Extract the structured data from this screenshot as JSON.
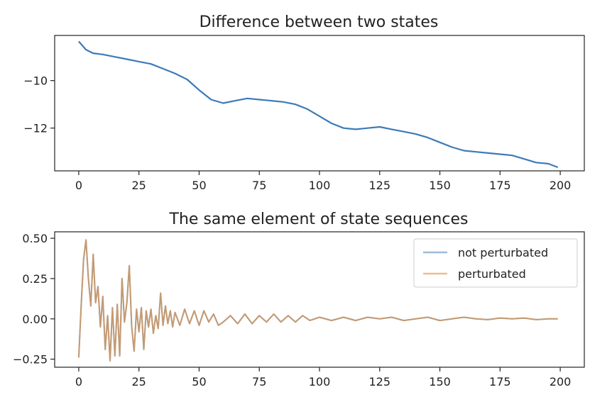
{
  "chart_data": [
    {
      "type": "line",
      "title": "Difference between two states",
      "xlabel": "",
      "ylabel": "",
      "xlim": [
        -10,
        210
      ],
      "ylim": [
        -13.8,
        -8.1
      ],
      "xticks": [
        0,
        25,
        50,
        75,
        100,
        125,
        150,
        175,
        200
      ],
      "xtick_labels": [
        "0",
        "25",
        "50",
        "75",
        "100",
        "125",
        "150",
        "175",
        "200"
      ],
      "yticks": [
        -10,
        -12
      ],
      "ytick_labels": [
        "−10",
        "−12"
      ],
      "grid": false,
      "series": [
        {
          "color": "#3d7ab8",
          "x": [
            0,
            3,
            6,
            10,
            15,
            20,
            25,
            30,
            35,
            40,
            45,
            50,
            55,
            60,
            65,
            70,
            75,
            80,
            85,
            90,
            95,
            100,
            105,
            110,
            115,
            120,
            125,
            130,
            135,
            140,
            145,
            150,
            155,
            160,
            165,
            170,
            175,
            180,
            185,
            190,
            195,
            199
          ],
          "y": [
            -8.35,
            -8.7,
            -8.85,
            -8.9,
            -9.0,
            -9.1,
            -9.2,
            -9.3,
            -9.5,
            -9.7,
            -9.95,
            -10.4,
            -10.8,
            -10.95,
            -10.85,
            -10.75,
            -10.8,
            -10.85,
            -10.9,
            -11.0,
            -11.2,
            -11.5,
            -11.8,
            -12.0,
            -12.05,
            -12.0,
            -11.95,
            -12.05,
            -12.15,
            -12.25,
            -12.4,
            -12.6,
            -12.8,
            -12.95,
            -13.0,
            -13.05,
            -13.1,
            -13.15,
            -13.3,
            -13.45,
            -13.5,
            -13.65
          ]
        }
      ]
    },
    {
      "type": "line",
      "title": "The same element of state sequences",
      "xlabel": "",
      "ylabel": "",
      "xlim": [
        -10,
        210
      ],
      "ylim": [
        -0.3,
        0.54
      ],
      "xticks": [
        0,
        25,
        50,
        75,
        100,
        125,
        150,
        175,
        200
      ],
      "xtick_labels": [
        "0",
        "25",
        "50",
        "75",
        "100",
        "125",
        "150",
        "175",
        "200"
      ],
      "yticks": [
        0.5,
        0.25,
        0.0,
        -0.25
      ],
      "ytick_labels": [
        "0.50",
        "0.25",
        "0.00",
        "−0.25"
      ],
      "grid": false,
      "legend": {
        "position": "top-right"
      },
      "series": [
        {
          "name": "not perturbated",
          "color": "#9dbbd9",
          "x": [
            0,
            1,
            2,
            3,
            4,
            5,
            6,
            7,
            8,
            9,
            10,
            11,
            12,
            13,
            14,
            15,
            16,
            17,
            18,
            19,
            20,
            21,
            22,
            23,
            24,
            25,
            26,
            27,
            28,
            29,
            30,
            31,
            32,
            33,
            34,
            35,
            36,
            37,
            38,
            39,
            40,
            42,
            44,
            46,
            48,
            50,
            52,
            54,
            56,
            58,
            60,
            63,
            66,
            69,
            72,
            75,
            78,
            81,
            84,
            87,
            90,
            93,
            96,
            100,
            105,
            110,
            115,
            120,
            125,
            130,
            135,
            140,
            145,
            150,
            155,
            160,
            165,
            170,
            175,
            180,
            185,
            190,
            195,
            199
          ],
          "y": [
            -0.24,
            0.08,
            0.37,
            0.49,
            0.25,
            0.08,
            0.4,
            0.1,
            0.2,
            -0.05,
            0.14,
            -0.19,
            0.02,
            -0.26,
            0.07,
            -0.23,
            0.09,
            -0.23,
            0.25,
            -0.02,
            0.1,
            0.33,
            -0.05,
            -0.2,
            0.06,
            -0.08,
            0.07,
            -0.19,
            0.05,
            -0.05,
            0.06,
            -0.09,
            0.02,
            -0.06,
            0.16,
            -0.04,
            0.08,
            -0.03,
            0.05,
            -0.05,
            0.04,
            -0.04,
            0.06,
            -0.03,
            0.05,
            -0.04,
            0.05,
            -0.02,
            0.03,
            -0.04,
            -0.02,
            0.02,
            -0.03,
            0.03,
            -0.03,
            0.02,
            -0.02,
            0.03,
            -0.02,
            0.02,
            -0.02,
            0.02,
            -0.01,
            0.01,
            -0.01,
            0.01,
            -0.01,
            0.01,
            0.0,
            0.01,
            -0.01,
            0.0,
            0.01,
            -0.01,
            0.0,
            0.01,
            0.0,
            -0.005,
            0.005,
            0.0,
            0.005,
            -0.005,
            0.0,
            0.0
          ]
        },
        {
          "name": "perturbated",
          "color": "#f4b98b",
          "x": [
            0,
            1,
            2,
            3,
            4,
            5,
            6,
            7,
            8,
            9,
            10,
            11,
            12,
            13,
            14,
            15,
            16,
            17,
            18,
            19,
            20,
            21,
            22,
            23,
            24,
            25,
            26,
            27,
            28,
            29,
            30,
            31,
            32,
            33,
            34,
            35,
            36,
            37,
            38,
            39,
            40,
            42,
            44,
            46,
            48,
            50,
            52,
            54,
            56,
            58,
            60,
            63,
            66,
            69,
            72,
            75,
            78,
            81,
            84,
            87,
            90,
            93,
            96,
            100,
            105,
            110,
            115,
            120,
            125,
            130,
            135,
            140,
            145,
            150,
            155,
            160,
            165,
            170,
            175,
            180,
            185,
            190,
            195,
            199
          ],
          "y": [
            -0.24,
            0.08,
            0.37,
            0.49,
            0.25,
            0.08,
            0.4,
            0.1,
            0.2,
            -0.05,
            0.14,
            -0.19,
            0.02,
            -0.26,
            0.07,
            -0.23,
            0.09,
            -0.23,
            0.25,
            -0.02,
            0.1,
            0.33,
            -0.05,
            -0.2,
            0.06,
            -0.08,
            0.07,
            -0.19,
            0.05,
            -0.05,
            0.06,
            -0.09,
            0.02,
            -0.06,
            0.16,
            -0.04,
            0.08,
            -0.03,
            0.05,
            -0.05,
            0.04,
            -0.04,
            0.06,
            -0.03,
            0.05,
            -0.04,
            0.05,
            -0.02,
            0.03,
            -0.04,
            -0.02,
            0.02,
            -0.03,
            0.03,
            -0.03,
            0.02,
            -0.02,
            0.03,
            -0.02,
            0.02,
            -0.02,
            0.02,
            -0.01,
            0.01,
            -0.01,
            0.01,
            -0.01,
            0.01,
            0.0,
            0.01,
            -0.01,
            0.0,
            0.01,
            -0.01,
            0.0,
            0.01,
            0.0,
            -0.005,
            0.005,
            0.0,
            0.005,
            -0.005,
            0.0,
            0.0
          ]
        }
      ],
      "overlap_color": "#c49a72"
    }
  ]
}
